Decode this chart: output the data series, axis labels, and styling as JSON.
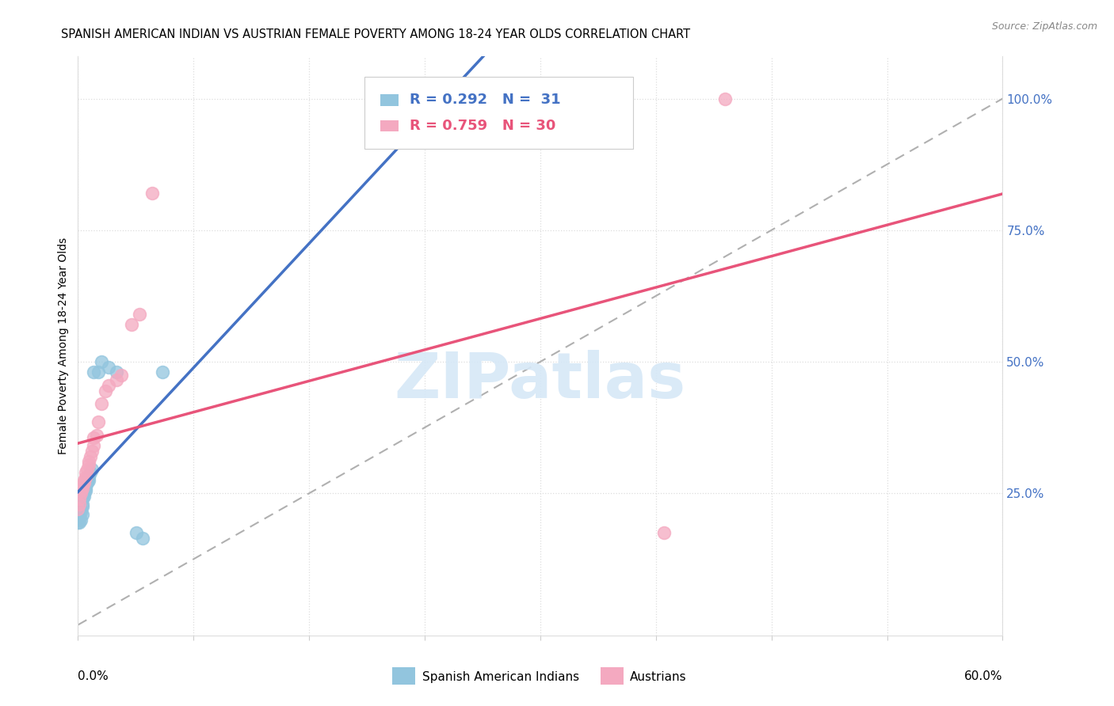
{
  "title": "SPANISH AMERICAN INDIAN VS AUSTRIAN FEMALE POVERTY AMONG 18-24 YEAR OLDS CORRELATION CHART",
  "source": "Source: ZipAtlas.com",
  "ylabel": "Female Poverty Among 18-24 Year Olds",
  "xlim": [
    0.0,
    0.6
  ],
  "ylim": [
    -0.02,
    1.08
  ],
  "blue_color": "#92c5de",
  "pink_color": "#f4a9c0",
  "blue_line_color": "#4472c4",
  "pink_line_color": "#e8547a",
  "dash_color": "#b0b0b0",
  "watermark_color": "#d6e8f7",
  "blue_x": [
    0.001,
    0.002,
    0.002,
    0.003,
    0.003,
    0.003,
    0.004,
    0.004,
    0.005,
    0.005,
    0.005,
    0.006,
    0.006,
    0.007,
    0.007,
    0.007,
    0.008,
    0.008,
    0.009,
    0.01,
    0.01,
    0.011,
    0.012,
    0.013,
    0.015,
    0.018,
    0.02,
    0.025,
    0.038,
    0.042,
    0.055
  ],
  "blue_y": [
    0.155,
    0.16,
    0.175,
    0.18,
    0.185,
    0.19,
    0.195,
    0.2,
    0.195,
    0.205,
    0.21,
    0.215,
    0.22,
    0.225,
    0.23,
    0.24,
    0.245,
    0.25,
    0.255,
    0.26,
    0.265,
    0.27,
    0.275,
    0.28,
    0.475,
    0.48,
    0.5,
    0.48,
    0.175,
    0.165,
    0.48
  ],
  "pink_x": [
    0.001,
    0.002,
    0.003,
    0.004,
    0.004,
    0.005,
    0.005,
    0.006,
    0.007,
    0.008,
    0.008,
    0.009,
    0.01,
    0.01,
    0.011,
    0.012,
    0.013,
    0.015,
    0.016,
    0.018,
    0.02,
    0.022,
    0.025,
    0.028,
    0.03,
    0.035,
    0.04,
    0.048,
    0.38,
    0.42
  ],
  "pink_y": [
    0.225,
    0.23,
    0.24,
    0.25,
    0.255,
    0.255,
    0.26,
    0.265,
    0.27,
    0.275,
    0.28,
    0.29,
    0.295,
    0.3,
    0.31,
    0.32,
    0.33,
    0.35,
    0.36,
    0.38,
    0.42,
    0.435,
    0.45,
    0.46,
    0.47,
    0.55,
    0.57,
    0.81,
    0.175,
    1.0
  ],
  "pink_outlier_x": [
    0.38
  ],
  "pink_outlier_y": [
    0.175
  ],
  "title_fontsize": 10.5,
  "tick_fontsize": 11,
  "legend_fontsize": 13
}
